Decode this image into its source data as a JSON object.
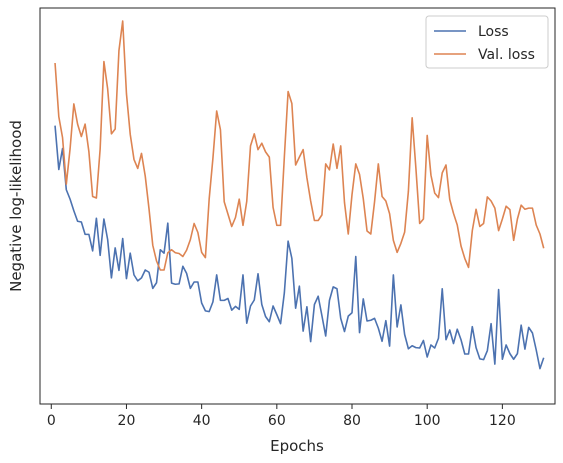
{
  "chart_data": {
    "type": "line",
    "title": "",
    "xlabel": "Epochs",
    "ylabel": "Negative log-likelihood",
    "xlim": [
      -3,
      134
    ],
    "ylim": [
      0,
      100
    ],
    "xticks": [
      0,
      20,
      40,
      60,
      80,
      100,
      120
    ],
    "yticks_shown": false,
    "grid": false,
    "legend_position": "top-right",
    "series": [
      {
        "name": "Loss",
        "color": "#4c72b0",
        "x": [
          1,
          2,
          3,
          4,
          5,
          6,
          7,
          8,
          9,
          10,
          11,
          12,
          13,
          14,
          15,
          16,
          17,
          18,
          19,
          20,
          21,
          22,
          23,
          24,
          25,
          26,
          27,
          28,
          29,
          30,
          31,
          32,
          33,
          34,
          35,
          36,
          37,
          38,
          39,
          40,
          41,
          42,
          43,
          44,
          45,
          46,
          47,
          48,
          49,
          50,
          51,
          52,
          53,
          54,
          55,
          56,
          57,
          58,
          59,
          60,
          61,
          62,
          63,
          64,
          65,
          66,
          67,
          68,
          69,
          70,
          71,
          72,
          73,
          74,
          75,
          76,
          77,
          78,
          79,
          80,
          81,
          82,
          83,
          84,
          85,
          86,
          87,
          88,
          89,
          90,
          91,
          92,
          93,
          94,
          95,
          96,
          97,
          98,
          99,
          100,
          101,
          102,
          103,
          104,
          105,
          106,
          107,
          108,
          109,
          110,
          111,
          112,
          113,
          114,
          115,
          116,
          117,
          118,
          119,
          120,
          121,
          122,
          123,
          124,
          125,
          126,
          127,
          128,
          129,
          130,
          131
        ],
        "values": [
          69.7,
          58.0,
          63.6,
          52.6,
          50.1,
          47.0,
          44.2,
          44.0,
          40.7,
          40.7,
          36.3,
          45.0,
          35.1,
          44.8,
          39.3,
          29.1,
          37.1,
          31.1,
          39.6,
          28.9,
          35.7,
          29.9,
          28.3,
          29.1,
          31.2,
          30.6,
          26.3,
          27.8,
          36.6,
          35.7,
          43.7,
          27.7,
          27.4,
          27.5,
          32.2,
          30.3,
          26.3,
          28.0,
          28.0,
          22.4,
          20.3,
          20.1,
          22.7,
          29.9,
          23.1,
          23.1,
          23.6,
          20.5,
          21.5,
          20.7,
          29.9,
          17.0,
          21.6,
          23.2,
          30.2,
          22.0,
          18.8,
          17.4,
          21.6,
          19.3,
          16.9,
          25.1,
          38.9,
          34.3,
          21.0,
          26.9,
          14.9,
          21.4,
          12.1,
          22.0,
          24.2,
          19.0,
          13.6,
          23.1,
          26.7,
          26.2,
          18.3,
          14.8,
          18.9,
          19.8,
          34.8,
          14.5,
          23.5,
          17.6,
          17.8,
          18.3,
          15.7,
          12.2,
          17.7,
          10.9,
          29.9,
          16.0,
          21.9,
          14.0,
          10.2,
          11.0,
          10.5,
          10.4,
          12.4,
          8.0,
          11.2,
          10.4,
          13.0,
          26.2,
          12.6,
          15.2,
          11.6,
          15.4,
          12.6,
          8.8,
          8.8,
          16.1,
          10.5,
          7.5,
          7.3,
          9.7,
          16.9,
          6.1,
          26.0,
          7.4,
          11.2,
          8.9,
          7.4,
          8.9,
          16.5,
          10.1,
          15.9,
          14.4,
          9.9,
          4.9,
          7.8
        ]
      },
      {
        "name": "Val. loss",
        "color": "#dd8452",
        "x": [
          1,
          2,
          3,
          4,
          5,
          6,
          7,
          8,
          9,
          10,
          11,
          12,
          13,
          14,
          15,
          16,
          17,
          18,
          19,
          20,
          21,
          22,
          23,
          24,
          25,
          26,
          27,
          28,
          29,
          30,
          31,
          32,
          33,
          34,
          35,
          36,
          37,
          38,
          39,
          40,
          41,
          42,
          43,
          44,
          45,
          46,
          47,
          48,
          49,
          50,
          51,
          52,
          53,
          54,
          55,
          56,
          57,
          58,
          59,
          60,
          61,
          62,
          63,
          64,
          65,
          66,
          67,
          68,
          69,
          70,
          71,
          72,
          73,
          74,
          75,
          76,
          77,
          78,
          79,
          80,
          81,
          82,
          83,
          84,
          85,
          86,
          87,
          88,
          89,
          90,
          91,
          92,
          93,
          94,
          95,
          96,
          97,
          98,
          99,
          100,
          101,
          102,
          103,
          104,
          105,
          106,
          107,
          108,
          109,
          110,
          111,
          112,
          113,
          114,
          115,
          116,
          117,
          118,
          119,
          120,
          121,
          122,
          123,
          124,
          125,
          126,
          127,
          128,
          129,
          130,
          131
        ],
        "values": [
          86.4,
          72.1,
          66.5,
          54.1,
          63.5,
          75.5,
          70.1,
          66.8,
          70.1,
          62.8,
          50.8,
          50.4,
          63.5,
          86.8,
          79.5,
          67.5,
          68.8,
          89.7,
          97.6,
          78.2,
          67.4,
          60.7,
          58.3,
          62.3,
          56.2,
          47.5,
          37.8,
          33.6,
          31.2,
          31.2,
          35.8,
          36.6,
          35.8,
          35.6,
          34.8,
          36.5,
          39.3,
          43.6,
          41.2,
          35.9,
          34.5,
          50.1,
          61.0,
          73.6,
          68.6,
          49.4,
          46.1,
          42.8,
          45.2,
          50.1,
          43.1,
          49.5,
          64.3,
          67.5,
          63.3,
          65.0,
          62.7,
          61.3,
          47.9,
          43.1,
          43.1,
          61.3,
          78.8,
          75.6,
          59.2,
          61.3,
          63.3,
          55.8,
          49.6,
          44.4,
          44.4,
          45.9,
          59.5,
          57.9,
          64.8,
          58.3,
          64.3,
          49.2,
          40.8,
          51.3,
          59.5,
          56.7,
          50.2,
          41.6,
          40.8,
          49.4,
          59.5,
          50.8,
          49.6,
          46.2,
          39.1,
          35.9,
          38.3,
          41.3,
          52.2,
          71.8,
          58.3,
          43.6,
          44.8,
          67.1,
          56.5,
          51.7,
          50.5,
          57.1,
          59.2,
          50.0,
          46.3,
          43.2,
          37.6,
          34.3,
          31.9,
          41.7,
          47.4,
          42.8,
          43.6,
          50.7,
          49.6,
          47.7,
          41.7,
          44.8,
          48.2,
          47.3,
          39.1,
          44.8,
          48.5,
          47.4,
          47.7,
          47.7,
          43.2,
          40.8,
          37.0
        ]
      }
    ]
  }
}
